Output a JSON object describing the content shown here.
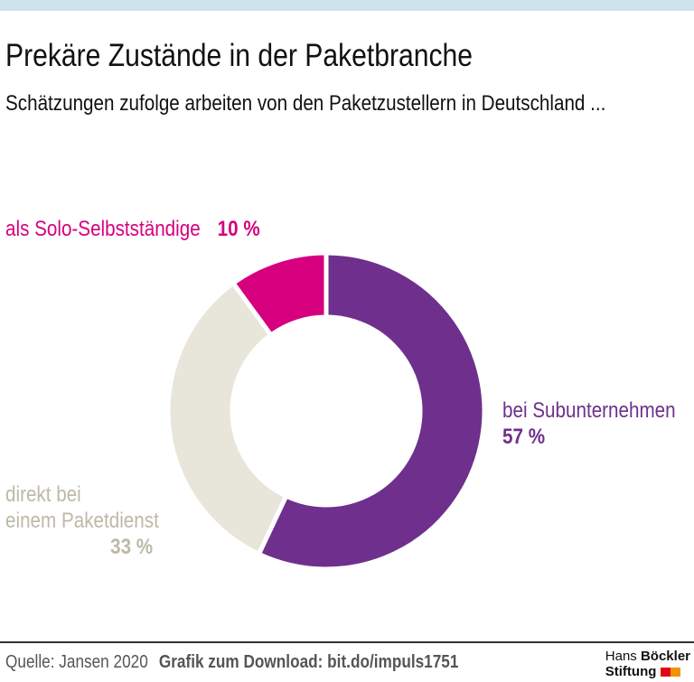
{
  "header": {
    "title": "Prekäre Zustände in der Paketbranche",
    "subtitle": "Schätzungen zufolge arbeiten von den Paketzustellern in Deutschland ..."
  },
  "chart_data": {
    "type": "pie",
    "donut": true,
    "title": "Prekäre Zustände in der Paketbranche",
    "slices": [
      {
        "label": "bei Subunternehmen",
        "value": 57,
        "value_label": "57 %",
        "color": "#6e308c"
      },
      {
        "label_lines": [
          "direkt bei",
          "einem Paketdienst"
        ],
        "value": 33,
        "value_label": "33 %",
        "color": "#e8e6da"
      },
      {
        "label": "als Solo-Selbstständige",
        "value": 10,
        "value_label": "10 %",
        "color": "#d6007f"
      }
    ]
  },
  "footer": {
    "source": "Quelle: Jansen 2020",
    "download": "Grafik zum Download: bit.do/impuls1751",
    "logo_line1a": "Hans",
    "logo_line1b": "Böckler",
    "logo_line2": "Stiftung"
  },
  "colors": {
    "topbar": "#cde3ee",
    "label_beige": "#bdb9a6",
    "logo_red": "#e2001a",
    "logo_orange": "#f39200"
  }
}
